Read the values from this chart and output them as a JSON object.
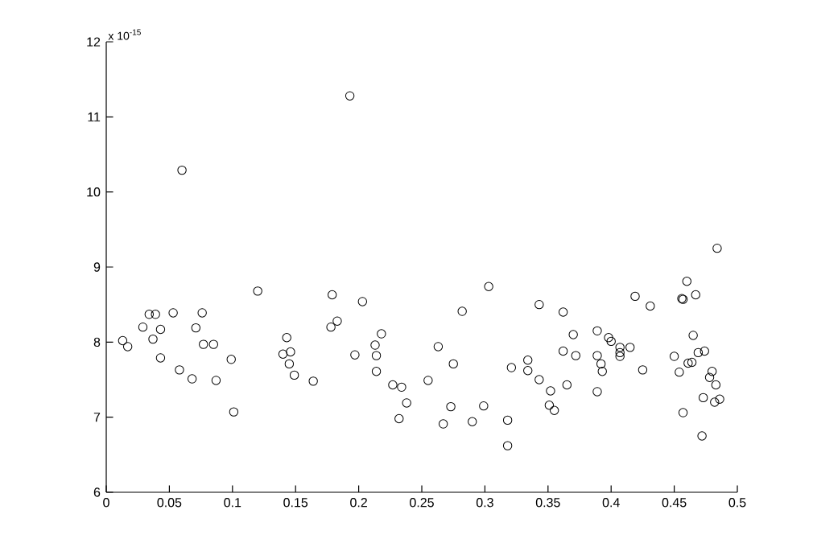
{
  "chart_data": {
    "type": "scatter",
    "marker": "circle",
    "color": "#000000",
    "annotations": [
      "x 10$^{-15}$"
    ],
    "xlim": [
      0,
      0.5
    ],
    "ylim": [
      6,
      12
    ],
    "xticks": [
      0,
      0.05,
      0.1,
      0.15,
      0.2,
      0.25,
      0.3,
      0.35,
      0.4,
      0.45,
      0.5
    ],
    "yticks": [
      6,
      7,
      8,
      9,
      10,
      11,
      12
    ],
    "x": [
      0.013,
      0.017,
      0.029,
      0.034,
      0.039,
      0.037,
      0.043,
      0.043,
      0.053,
      0.058,
      0.06,
      0.068,
      0.071,
      0.076,
      0.077,
      0.085,
      0.087,
      0.099,
      0.101,
      0.12,
      0.143,
      0.14,
      0.146,
      0.145,
      0.149,
      0.164,
      0.179,
      0.183,
      0.178,
      0.193,
      0.197,
      0.203,
      0.213,
      0.218,
      0.214,
      0.214,
      0.227,
      0.234,
      0.238,
      0.232,
      0.484,
      0.46,
      0.456,
      0.457,
      0.467,
      0.419,
      0.431,
      0.303,
      0.282,
      0.343,
      0.362,
      0.263,
      0.275,
      0.255,
      0.273,
      0.267,
      0.29,
      0.299,
      0.318,
      0.318,
      0.321,
      0.334,
      0.334,
      0.343,
      0.352,
      0.351,
      0.355,
      0.365,
      0.362,
      0.37,
      0.372,
      0.389,
      0.389,
      0.392,
      0.393,
      0.389,
      0.398,
      0.4,
      0.407,
      0.407,
      0.407,
      0.415,
      0.425,
      0.45,
      0.465,
      0.454,
      0.461,
      0.464,
      0.469,
      0.474,
      0.48,
      0.478,
      0.483,
      0.473,
      0.486,
      0.482,
      0.457,
      0.472
    ],
    "values": [
      8.02,
      7.94,
      8.2,
      8.37,
      8.37,
      8.04,
      8.17,
      7.79,
      8.39,
      7.63,
      10.29,
      7.51,
      8.19,
      8.39,
      7.97,
      7.97,
      7.49,
      7.77,
      7.07,
      8.68,
      8.06,
      7.84,
      7.87,
      7.71,
      7.56,
      7.48,
      8.63,
      8.28,
      8.2,
      11.28,
      7.83,
      8.54,
      7.96,
      8.11,
      7.82,
      7.61,
      7.43,
      7.4,
      7.19,
      6.98,
      9.25,
      8.81,
      8.58,
      8.57,
      8.63,
      8.61,
      8.48,
      8.74,
      8.41,
      8.5,
      8.4,
      7.94,
      7.71,
      7.49,
      7.14,
      6.91,
      6.94,
      7.15,
      6.96,
      6.62,
      7.66,
      7.76,
      7.62,
      7.5,
      7.35,
      7.16,
      7.09,
      7.43,
      7.88,
      8.1,
      7.82,
      8.15,
      7.82,
      7.71,
      7.61,
      7.34,
      8.06,
      8.01,
      7.93,
      7.86,
      7.81,
      7.93,
      7.63,
      7.81,
      8.09,
      7.6,
      7.72,
      7.73,
      7.86,
      7.88,
      7.61,
      7.53,
      7.43,
      7.26,
      7.24,
      7.2,
      7.06,
      6.75
    ]
  }
}
